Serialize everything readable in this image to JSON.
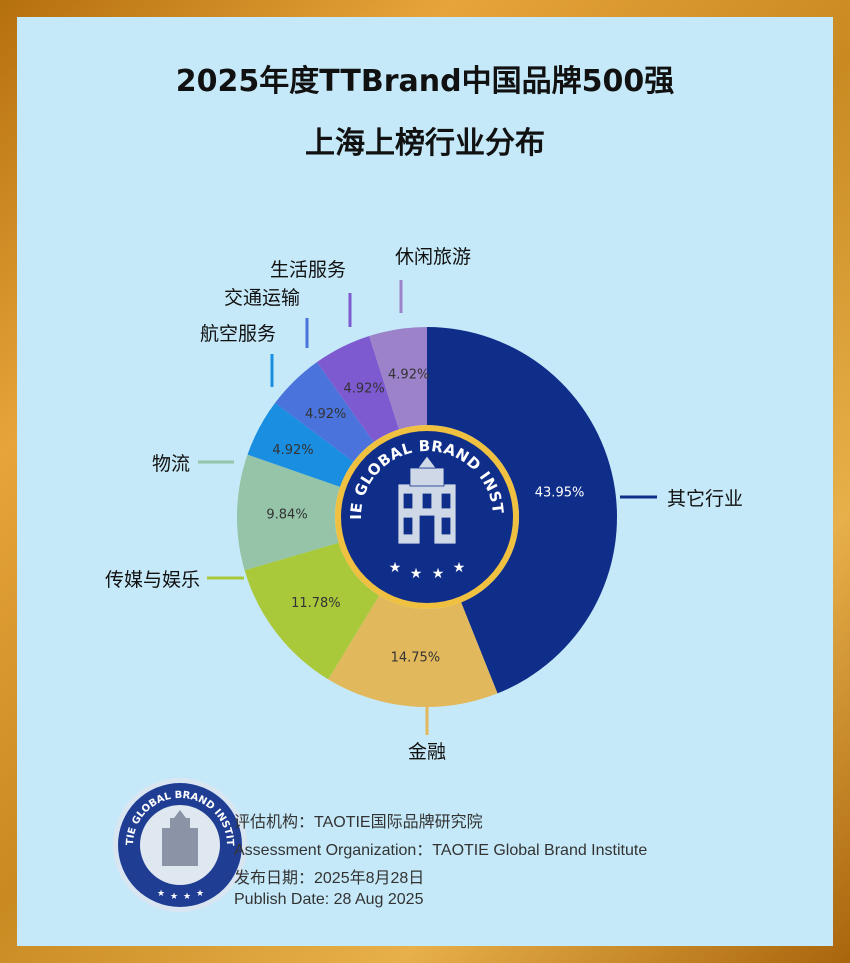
{
  "title_line1": "2025年度TTBrand中国品牌500强",
  "title_line2": "上海上榜行业分布",
  "chart_data": {
    "type": "pie",
    "variant": "donut",
    "slices": [
      {
        "label": "其它行业",
        "value": 43.95,
        "value_label": "43.95%",
        "color": "#0f2e8a"
      },
      {
        "label": "金融",
        "value": 14.75,
        "value_label": "14.75%",
        "color": "#e2b85c"
      },
      {
        "label": "传媒与娱乐",
        "value": 11.78,
        "value_label": "11.78%",
        "color": "#a9c93a"
      },
      {
        "label": "物流",
        "value": 9.84,
        "value_label": "9.84%",
        "color": "#95c4a8"
      },
      {
        "label": "航空服务",
        "value": 4.92,
        "value_label": "4.92%",
        "color": "#1a8ee0"
      },
      {
        "label": "交通运输",
        "value": 4.92,
        "value_label": "4.92%",
        "color": "#4a73dc"
      },
      {
        "label": "生活服务",
        "value": 4.92,
        "value_label": "4.92%",
        "color": "#7d5ad0"
      },
      {
        "label": "休闲旅游",
        "value": 4.92,
        "value_label": "4.92%",
        "color": "#9c82c8"
      }
    ]
  },
  "center_logo": {
    "text": "TAOTIE GLOBAL BRAND INSTITUTE",
    "fill": "#0f2e8a",
    "ring": "#f0c040"
  },
  "footer": {
    "line1": "评估机构：TAOTIE国际品牌研究院",
    "line2": "Assessment Organization：TAOTIE Global Brand Institute",
    "line3": "发布日期：2025年8月28日",
    "line4": "Publish Date: 28 Aug 2025",
    "logo_text": "TAOTIE GLOBAL BRAND INSTITUTE"
  }
}
